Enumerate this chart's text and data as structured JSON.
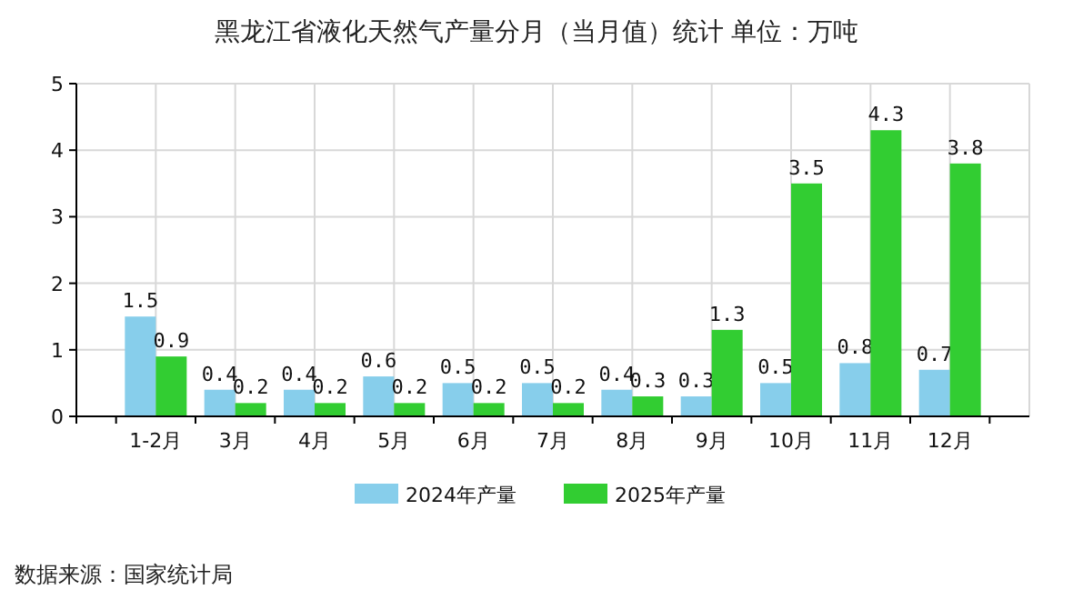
{
  "chart_data": {
    "type": "bar",
    "title": "黑龙江省液化天然气产量分月（当月值）统计 单位：万吨",
    "categories": [
      "1-2月",
      "3月",
      "4月",
      "5月",
      "6月",
      "7月",
      "8月",
      "9月",
      "10月",
      "11月",
      "12月"
    ],
    "series": [
      {
        "name": "2024年产量",
        "color": "#87ceeb",
        "values": [
          1.5,
          0.4,
          0.4,
          0.6,
          0.5,
          0.5,
          0.4,
          0.3,
          0.5,
          0.8,
          0.7
        ]
      },
      {
        "name": "2025年产量",
        "color": "#32cd32",
        "values": [
          0.9,
          0.2,
          0.2,
          0.2,
          0.2,
          0.2,
          0.3,
          1.3,
          3.5,
          4.3,
          3.8
        ]
      }
    ],
    "ylim": [
      0,
      5
    ],
    "yticks": [
      0,
      1,
      2,
      3,
      4,
      5
    ],
    "grid": true,
    "legend": "bottom",
    "data_labels": true,
    "annotations": [
      "数据来源：国家统计局"
    ]
  }
}
